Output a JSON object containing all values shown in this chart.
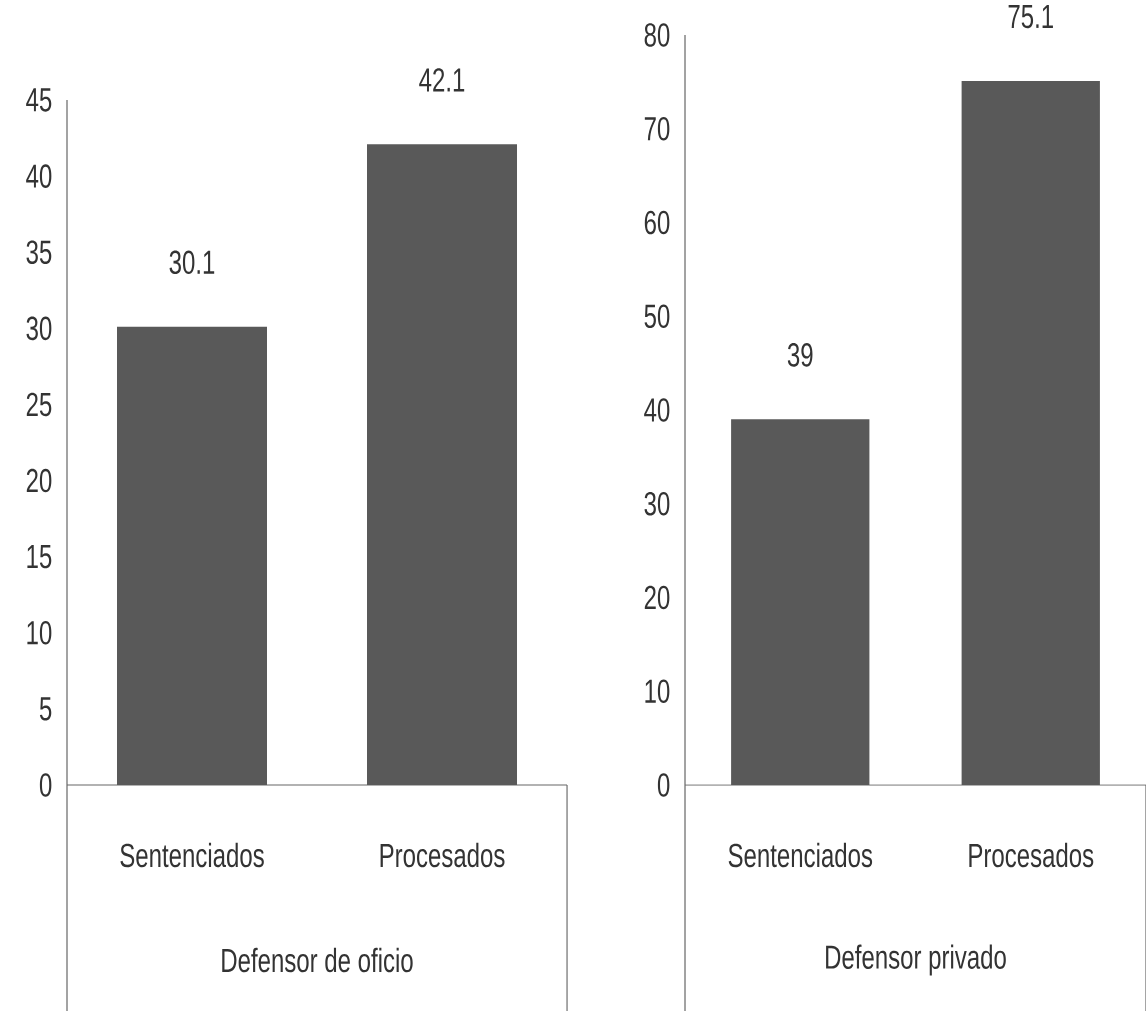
{
  "chart_data": [
    {
      "type": "bar",
      "categories": [
        "Sentenciados",
        "Procesados"
      ],
      "values": [
        30.1,
        42.1
      ],
      "color": "#595959",
      "xlabel": "Defensor de oficio",
      "ylim": [
        0,
        45
      ],
      "yticks": [
        0,
        5,
        10,
        15,
        20,
        25,
        30,
        35,
        40,
        45
      ],
      "data_labels": true
    },
    {
      "type": "bar",
      "categories": [
        "Sentenciados",
        "Procesados"
      ],
      "values": [
        39,
        75.1
      ],
      "color": "#595959",
      "xlabel": "Defensor privado",
      "ylim": [
        0,
        80
      ],
      "yticks": [
        0,
        10,
        20,
        30,
        40,
        50,
        60,
        70,
        80
      ],
      "data_labels": true
    }
  ]
}
